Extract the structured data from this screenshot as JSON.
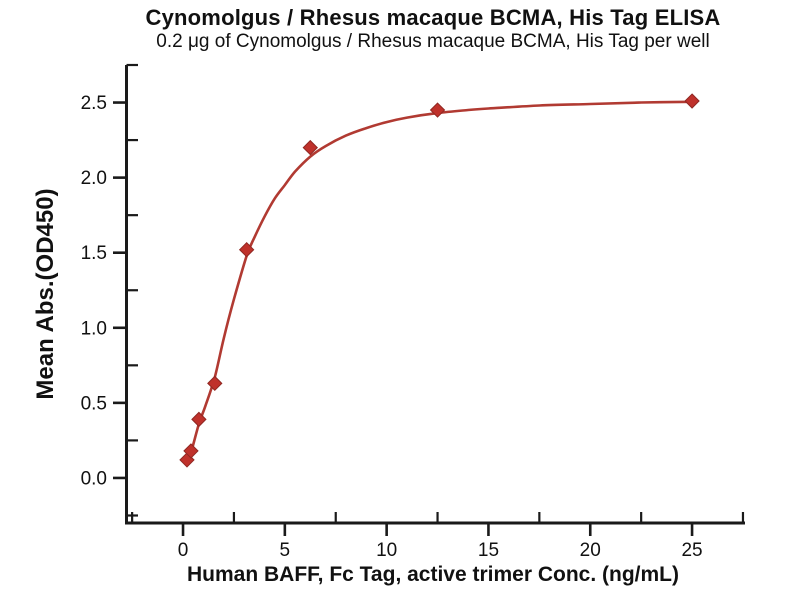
{
  "chart_data": {
    "type": "line",
    "title": "Cynomolgus / Rhesus macaque BCMA, His Tag ELISA",
    "subtitle": "0.2 μg of Cynomolgus / Rhesus macaque BCMA, His Tag per well",
    "xlabel": "Human BAFF, Fc Tag, active trimer Conc. (ng/mL)",
    "ylabel": "Mean Abs.(OD450)",
    "xlim": [
      -2.85,
      27.6
    ],
    "ylim": [
      -0.3,
      2.75
    ],
    "grid": false,
    "legend": "none",
    "x_major_ticks": [
      0,
      5,
      10,
      15,
      20,
      25
    ],
    "x_major_labels": [
      "0",
      "5",
      "10",
      "15",
      "20",
      "25"
    ],
    "x_minor_ticks": [
      -2.5,
      2.5,
      7.5,
      12.5,
      17.5,
      22.5,
      27.5
    ],
    "y_major_ticks": [
      0.0,
      0.5,
      1.0,
      1.5,
      2.0,
      2.5
    ],
    "y_major_labels": [
      "0.0",
      "0.5",
      "1.0",
      "1.5",
      "2.0",
      "2.5"
    ],
    "y_minor_ticks": [
      -0.25,
      0.25,
      0.75,
      1.25,
      1.75,
      2.25,
      2.75
    ],
    "series": [
      {
        "name": "measured-points",
        "type": "scatter",
        "marker": "diamond",
        "points": [
          [
            0.195,
            0.12
          ],
          [
            0.39,
            0.18
          ],
          [
            0.78,
            0.39
          ],
          [
            1.56,
            0.63
          ],
          [
            3.125,
            1.52
          ],
          [
            6.25,
            2.2
          ],
          [
            12.5,
            2.45
          ],
          [
            25,
            2.51
          ]
        ]
      },
      {
        "name": "fit-curve",
        "type": "line",
        "points": [
          [
            0.15,
            0.1
          ],
          [
            0.39,
            0.17
          ],
          [
            0.78,
            0.36
          ],
          [
            1.1,
            0.48
          ],
          [
            1.56,
            0.67
          ],
          [
            2.0,
            0.93
          ],
          [
            2.5,
            1.19
          ],
          [
            3.125,
            1.48
          ],
          [
            3.5,
            1.6
          ],
          [
            4.0,
            1.74
          ],
          [
            4.5,
            1.86
          ],
          [
            5.0,
            1.95
          ],
          [
            5.5,
            2.04
          ],
          [
            6.25,
            2.14
          ],
          [
            7.0,
            2.21
          ],
          [
            8.0,
            2.28
          ],
          [
            9.0,
            2.33
          ],
          [
            10.0,
            2.37
          ],
          [
            11.0,
            2.4
          ],
          [
            12.5,
            2.43
          ],
          [
            14.0,
            2.45
          ],
          [
            15.0,
            2.46
          ],
          [
            17.5,
            2.48
          ],
          [
            20.0,
            2.49
          ],
          [
            22.5,
            2.5
          ],
          [
            25.0,
            2.505
          ]
        ]
      }
    ],
    "colors": {
      "curve": "#b13a32",
      "marker_fill": "#bf312b",
      "marker_stroke": "#8f2722",
      "axis": "#1a1a1a",
      "text": "#111111",
      "background": "#ffffff"
    }
  }
}
